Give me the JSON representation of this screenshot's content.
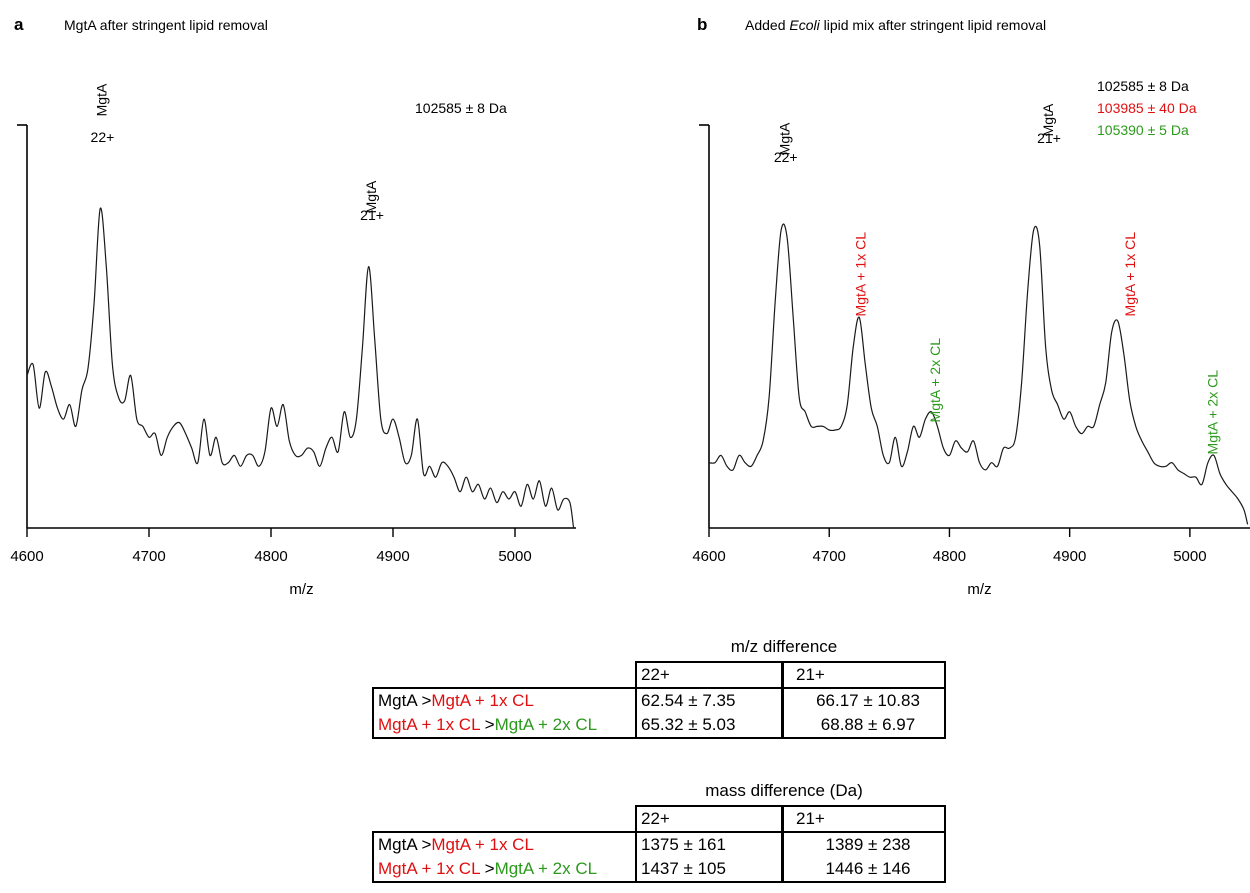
{
  "colors": {
    "black": "#000000",
    "red": "#e01010",
    "green": "#2c9a1c"
  },
  "panels": [
    {
      "letter": "a",
      "title_parts": [
        {
          "text": "MgtA after stringent lipid removal",
          "italic": false
        }
      ],
      "mass_labels": [
        {
          "text": "102585 ± 8 Da",
          "color": "black"
        }
      ]
    },
    {
      "letter": "b",
      "title_parts": [
        {
          "text": "Added ",
          "italic": false
        },
        {
          "text": "Ecoli",
          "italic": true
        },
        {
          "text": " lipid mix after stringent lipid removal",
          "italic": false
        }
      ],
      "mass_labels": [
        {
          "text": "102585 ± 8 Da",
          "color": "black"
        },
        {
          "text": "103985 ± 40 Da",
          "color": "red"
        },
        {
          "text": "105390 ± 5 Da",
          "color": "green"
        }
      ]
    }
  ],
  "chart_data": [
    {
      "type": "line",
      "panel": "a",
      "xlabel": "m/z",
      "ylabel": "",
      "xlim": [
        4600,
        5050
      ],
      "ylim": [
        0,
        100
      ],
      "xticks": [
        4600,
        4700,
        4800,
        4900,
        5000
      ],
      "annotations": [
        {
          "text": "MgtA",
          "charge": "22+",
          "x": 4661,
          "color": "black"
        },
        {
          "text": "MgtA",
          "charge": "21+",
          "x": 4882,
          "color": "black"
        }
      ],
      "series": [
        {
          "x": [
            4600,
            4605,
            4610,
            4615,
            4620,
            4625,
            4630,
            4635,
            4640,
            4645,
            4650,
            4655,
            4660,
            4665,
            4670,
            4675,
            4680,
            4685,
            4690,
            4695,
            4700,
            4705,
            4710,
            4715,
            4720,
            4725,
            4730,
            4735,
            4740,
            4745,
            4750,
            4755,
            4760,
            4765,
            4770,
            4775,
            4780,
            4785,
            4790,
            4795,
            4800,
            4805,
            4810,
            4815,
            4820,
            4825,
            4830,
            4835,
            4840,
            4845,
            4850,
            4855,
            4860,
            4865,
            4870,
            4875,
            4880,
            4885,
            4890,
            4895,
            4900,
            4905,
            4910,
            4915,
            4920,
            4925,
            4930,
            4935,
            4940,
            4945,
            4950,
            4955,
            4960,
            4965,
            4970,
            4975,
            4980,
            4985,
            4990,
            4995,
            5000,
            5005,
            5010,
            5015,
            5020,
            5025,
            5030,
            5035,
            5040,
            5045,
            5048
          ],
          "y": [
            42,
            45,
            33,
            43,
            39,
            33,
            30,
            34,
            28,
            38,
            44,
            62,
            88,
            72,
            45,
            36,
            35,
            42,
            30,
            28,
            25,
            26,
            20,
            25,
            28,
            29,
            26,
            22,
            18,
            30,
            20,
            25,
            18,
            18,
            20,
            17,
            20,
            20,
            17,
            21,
            33,
            28,
            34,
            24,
            20,
            20,
            22,
            21,
            17,
            22,
            25,
            21,
            32,
            25,
            30,
            50,
            72,
            52,
            30,
            26,
            30,
            25,
            18,
            20,
            30,
            15,
            17,
            14,
            18,
            17,
            14,
            10,
            14,
            10,
            12,
            8,
            11,
            7,
            10,
            8,
            10,
            6,
            12,
            8,
            13,
            6,
            11,
            5,
            8,
            7,
            0
          ]
        }
      ]
    },
    {
      "type": "line",
      "panel": "b",
      "xlabel": "m/z",
      "ylabel": "",
      "xlim": [
        4600,
        5050
      ],
      "ylim": [
        0,
        100
      ],
      "xticks": [
        4600,
        4700,
        4800,
        4900,
        5000
      ],
      "annotations": [
        {
          "text": "MgtA",
          "charge": "22+",
          "x": 4663,
          "color": "black"
        },
        {
          "text": "MgtA + 1x CL",
          "charge": "",
          "x": 4726,
          "color": "red"
        },
        {
          "text": "MgtA + 2x CL",
          "charge": "",
          "x": 4788,
          "color": "green"
        },
        {
          "text": "MgtA",
          "charge": "21+",
          "x": 4882,
          "color": "black"
        },
        {
          "text": "MgtA + 1x CL",
          "charge": "",
          "x": 4950,
          "color": "red"
        },
        {
          "text": "MgtA + 2x CL",
          "charge": "",
          "x": 5019,
          "color": "green"
        }
      ],
      "series": [
        {
          "x": [
            4600,
            4605,
            4610,
            4615,
            4620,
            4625,
            4630,
            4635,
            4640,
            4645,
            4650,
            4655,
            4660,
            4665,
            4670,
            4675,
            4680,
            4685,
            4690,
            4695,
            4700,
            4705,
            4710,
            4715,
            4720,
            4725,
            4730,
            4735,
            4740,
            4745,
            4750,
            4755,
            4760,
            4765,
            4770,
            4775,
            4780,
            4785,
            4790,
            4795,
            4800,
            4805,
            4810,
            4815,
            4820,
            4825,
            4830,
            4835,
            4840,
            4845,
            4850,
            4855,
            4860,
            4865,
            4870,
            4875,
            4880,
            4885,
            4890,
            4895,
            4900,
            4905,
            4910,
            4915,
            4920,
            4925,
            4930,
            4935,
            4940,
            4945,
            4950,
            4955,
            4960,
            4965,
            4970,
            4975,
            4980,
            4985,
            4990,
            4995,
            5000,
            5005,
            5010,
            5015,
            5020,
            5025,
            5030,
            5035,
            5040,
            5045,
            5048
          ],
          "y": [
            18,
            18,
            20,
            17,
            16,
            20,
            18,
            17,
            20,
            24,
            36,
            62,
            82,
            80,
            58,
            36,
            32,
            28,
            28,
            28,
            27,
            27,
            28,
            34,
            50,
            58,
            45,
            33,
            28,
            20,
            18,
            25,
            17,
            21,
            28,
            25,
            30,
            32,
            28,
            22,
            20,
            24,
            22,
            21,
            24,
            18,
            16,
            18,
            17,
            22,
            22,
            25,
            40,
            65,
            82,
            78,
            50,
            38,
            34,
            30,
            32,
            28,
            26,
            28,
            28,
            34,
            40,
            54,
            57,
            48,
            35,
            28,
            24,
            21,
            18,
            17,
            17,
            18,
            16,
            15,
            14,
            14,
            12,
            18,
            20,
            15,
            12,
            10,
            8,
            5,
            1
          ]
        }
      ]
    }
  ],
  "tables": [
    {
      "title": "m/z difference",
      "col_headers": [
        "22+",
        "21+"
      ],
      "rows": [
        {
          "label_parts": [
            {
              "text": "MgtA >",
              "color": "black"
            },
            {
              "text": "MgtA + 1x CL",
              "color": "red"
            }
          ],
          "values": [
            "62.54 ± 7.35",
            "66.17 ± 10.83"
          ]
        },
        {
          "label_parts": [
            {
              "text": "MgtA + 1x CL",
              "color": "red"
            },
            {
              "text": " >",
              "color": "black"
            },
            {
              "text": "MgtA + 2x CL",
              "color": "green"
            }
          ],
          "values": [
            "65.32 ± 5.03",
            "68.88 ± 6.97"
          ]
        }
      ]
    },
    {
      "title": "mass difference (Da)",
      "col_headers": [
        "22+",
        "21+"
      ],
      "rows": [
        {
          "label_parts": [
            {
              "text": "MgtA >",
              "color": "black"
            },
            {
              "text": "MgtA + 1x CL",
              "color": "red"
            }
          ],
          "values": [
            "1375 ± 161",
            "1389 ± 238"
          ]
        },
        {
          "label_parts": [
            {
              "text": "MgtA + 1x CL",
              "color": "red"
            },
            {
              "text": " >",
              "color": "black"
            },
            {
              "text": "MgtA + 2x CL",
              "color": "green"
            }
          ],
          "values": [
            "1437 ± 105",
            "1446 ± 146"
          ]
        }
      ]
    }
  ]
}
